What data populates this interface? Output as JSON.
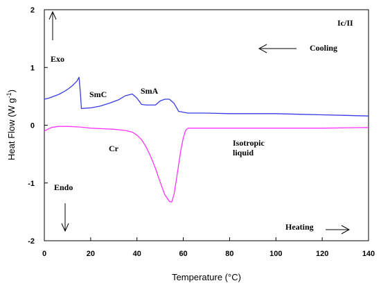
{
  "chart_data": {
    "type": "line",
    "title": "",
    "xlabel": "Temperature (°C)",
    "ylabel": "Heat Flow (W g-1)",
    "xlim": [
      0,
      140
    ],
    "ylim": [
      -2,
      2
    ],
    "x_ticks": [
      0,
      20,
      40,
      60,
      80,
      100,
      120,
      140
    ],
    "y_ticks": [
      -2,
      -1,
      0,
      1,
      2
    ],
    "grid": false,
    "series": [
      {
        "color": "#3a3ae6",
        "points": [
          [
            0,
            0.45
          ],
          [
            2,
            0.47
          ],
          [
            4,
            0.5
          ],
          [
            6,
            0.53
          ],
          [
            8,
            0.57
          ],
          [
            10,
            0.62
          ],
          [
            12,
            0.68
          ],
          [
            14,
            0.76
          ],
          [
            15,
            0.83
          ],
          [
            15.6,
            0.55
          ],
          [
            16,
            0.29
          ],
          [
            20,
            0.3
          ],
          [
            24,
            0.33
          ],
          [
            28,
            0.38
          ],
          [
            32,
            0.44
          ],
          [
            35,
            0.51
          ],
          [
            38,
            0.54
          ],
          [
            40,
            0.47
          ],
          [
            42,
            0.36
          ],
          [
            44,
            0.35
          ],
          [
            48,
            0.35
          ],
          [
            50,
            0.42
          ],
          [
            52,
            0.45
          ],
          [
            54,
            0.45
          ],
          [
            56,
            0.38
          ],
          [
            58,
            0.24
          ],
          [
            62,
            0.21
          ],
          [
            70,
            0.21
          ],
          [
            80,
            0.2
          ],
          [
            90,
            0.2
          ],
          [
            100,
            0.2
          ],
          [
            110,
            0.19
          ],
          [
            120,
            0.18
          ],
          [
            130,
            0.17
          ],
          [
            140,
            0.16
          ]
        ]
      },
      {
        "color": "#ff33ff",
        "points": [
          [
            0,
            -0.1
          ],
          [
            3,
            -0.04
          ],
          [
            6,
            -0.02
          ],
          [
            10,
            -0.02
          ],
          [
            15,
            -0.03
          ],
          [
            20,
            -0.05
          ],
          [
            25,
            -0.06
          ],
          [
            30,
            -0.07
          ],
          [
            35,
            -0.09
          ],
          [
            38,
            -0.12
          ],
          [
            40,
            -0.17
          ],
          [
            42,
            -0.25
          ],
          [
            44,
            -0.38
          ],
          [
            46,
            -0.55
          ],
          [
            48,
            -0.75
          ],
          [
            50,
            -0.98
          ],
          [
            52,
            -1.2
          ],
          [
            54,
            -1.32
          ],
          [
            55,
            -1.33
          ],
          [
            56,
            -1.2
          ],
          [
            57,
            -0.95
          ],
          [
            58,
            -0.68
          ],
          [
            59,
            -0.42
          ],
          [
            60,
            -0.22
          ],
          [
            61,
            -0.09
          ],
          [
            62,
            -0.05
          ],
          [
            70,
            -0.05
          ],
          [
            80,
            -0.05
          ],
          [
            100,
            -0.05
          ],
          [
            120,
            -0.05
          ],
          [
            140,
            -0.04
          ]
        ]
      }
    ],
    "annotations": {
      "ic": "Ic/II",
      "cooling": "Cooling",
      "exo": "Exo",
      "endo": "Endo",
      "smc": "SmC",
      "sma": "SmA",
      "cr": "Cr",
      "iso1": "Isotropic",
      "iso2": "liquid",
      "heating": "Heating"
    }
  }
}
